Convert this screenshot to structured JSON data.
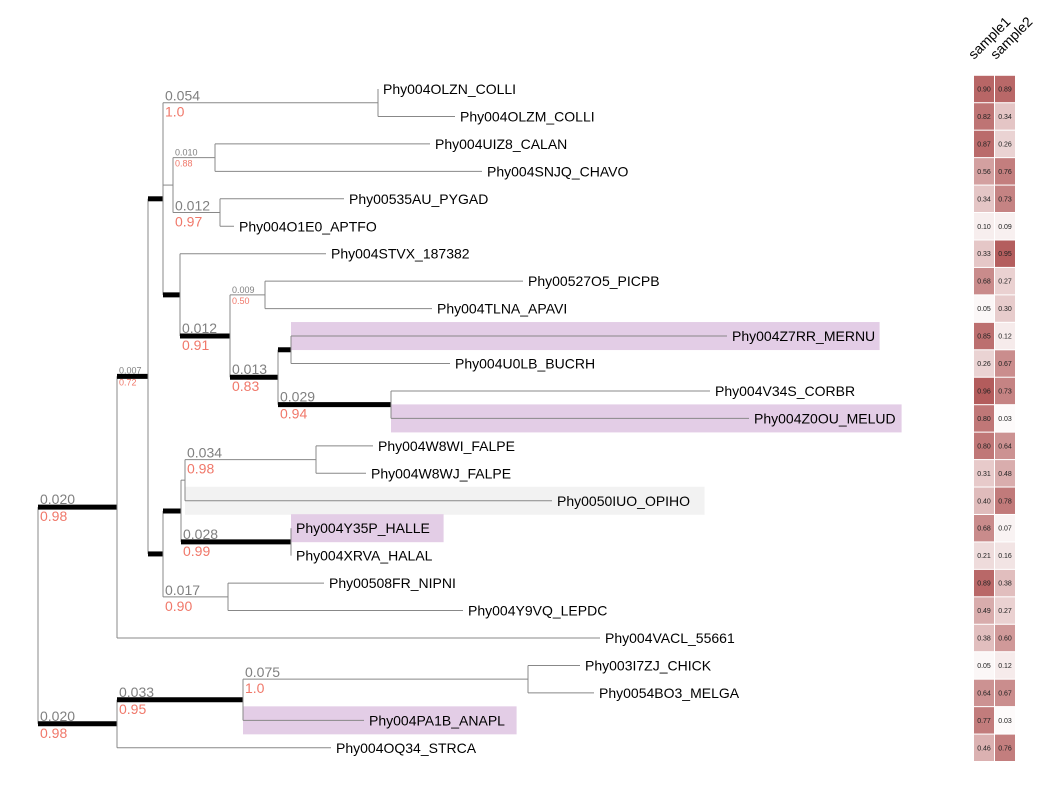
{
  "heatmap": {
    "columns": [
      "sample1",
      "sample2"
    ],
    "color_low": "#ffffff",
    "color_high": "#b05555"
  },
  "colors": {
    "highlight_purple": "#e3cde6",
    "highlight_grey": "#f2f2f2",
    "distance_label": "#808080",
    "support_label": "#f0786a"
  },
  "leaves": [
    {
      "name": "Phy004OLZN_COLLI",
      "sample1": "0.90",
      "sample2": "0.89"
    },
    {
      "name": "Phy004OLZM_COLLI",
      "sample1": "0.82",
      "sample2": "0.34"
    },
    {
      "name": "Phy004UIZ8_CALAN",
      "sample1": "0.87",
      "sample2": "0.26"
    },
    {
      "name": "Phy004SNJQ_CHAVO",
      "sample1": "0.56",
      "sample2": "0.76"
    },
    {
      "name": "Phy00535AU_PYGAD",
      "sample1": "0.34",
      "sample2": "0.73"
    },
    {
      "name": "Phy004O1E0_APTFO",
      "sample1": "0.10",
      "sample2": "0.09"
    },
    {
      "name": "Phy004STVX_187382",
      "sample1": "0.33",
      "sample2": "0.95"
    },
    {
      "name": "Phy00527O5_PICPB",
      "sample1": "0.68",
      "sample2": "0.27"
    },
    {
      "name": "Phy004TLNA_APAVI",
      "sample1": "0.05",
      "sample2": "0.30"
    },
    {
      "name": "Phy004Z7RR_MERNU",
      "sample1": "0.85",
      "sample2": "0.12",
      "highlight": "purple"
    },
    {
      "name": "Phy004U0LB_BUCRH",
      "sample1": "0.26",
      "sample2": "0.67"
    },
    {
      "name": "Phy004V34S_CORBR",
      "sample1": "0.96",
      "sample2": "0.73"
    },
    {
      "name": "Phy004Z0OU_MELUD",
      "sample1": "0.80",
      "sample2": "0.03",
      "highlight": "purple"
    },
    {
      "name": "Phy004W8WI_FALPE",
      "sample1": "0.80",
      "sample2": "0.64"
    },
    {
      "name": "Phy004W8WJ_FALPE",
      "sample1": "0.31",
      "sample2": "0.48"
    },
    {
      "name": "Phy0050IUO_OPIHO",
      "sample1": "0.40",
      "sample2": "0.78",
      "highlight": "grey"
    },
    {
      "name": "Phy004Y35P_HALLE",
      "sample1": "0.68",
      "sample2": "0.07",
      "highlight": "purple"
    },
    {
      "name": "Phy004XRVA_HALAL",
      "sample1": "0.21",
      "sample2": "0.16"
    },
    {
      "name": "Phy00508FR_NIPNI",
      "sample1": "0.89",
      "sample2": "0.38"
    },
    {
      "name": "Phy004Y9VQ_LEPDC",
      "sample1": "0.49",
      "sample2": "0.27"
    },
    {
      "name": "Phy004VACL_55661",
      "sample1": "0.38",
      "sample2": "0.60"
    },
    {
      "name": "Phy003I7ZJ_CHICK",
      "sample1": "0.05",
      "sample2": "0.12"
    },
    {
      "name": "Phy0054BO3_MELGA",
      "sample1": "0.64",
      "sample2": "0.67"
    },
    {
      "name": "Phy004PA1B_ANAPL",
      "sample1": "0.77",
      "sample2": "0.03",
      "highlight": "purple"
    },
    {
      "name": "Phy004OQ34_STRCA",
      "sample1": "0.46",
      "sample2": "0.76"
    }
  ],
  "node_labels": [
    {
      "dist": "0.054",
      "support": "1.0"
    },
    {
      "dist": "0.010",
      "support": "0.88"
    },
    {
      "dist": "0.012",
      "support": "0.97"
    },
    {
      "dist": "0.012",
      "support": "0.91"
    },
    {
      "dist": "0.009",
      "support": "0.50"
    },
    {
      "dist": "0.013",
      "support": "0.83"
    },
    {
      "dist": "0.029",
      "support": "0.94"
    },
    {
      "dist": "0.007",
      "support": "0.72"
    },
    {
      "dist": "0.034",
      "support": "0.98"
    },
    {
      "dist": "0.028",
      "support": "0.99"
    },
    {
      "dist": "0.017",
      "support": "0.90"
    },
    {
      "dist": "0.020",
      "support": "0.98"
    },
    {
      "dist": "0.020",
      "support": "0.98"
    },
    {
      "dist": "0.033",
      "support": "0.95"
    },
    {
      "dist": "0.075",
      "support": "1.0"
    }
  ]
}
